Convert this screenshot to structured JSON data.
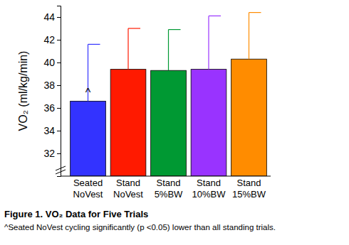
{
  "chart_data": {
    "type": "bar",
    "title": "Figure 1.  VO₂ Data for Five Trials",
    "caption": "^Seated NoVest cycling significantly (p <0.05) lower than all standing trials.",
    "y_label": "VO₂ (ml/kg/min)",
    "categories": [
      "Seated NoVest",
      "Stand NoVest",
      "Stand 5%BW",
      "Stand 10%BW",
      "Stand 15%BW"
    ],
    "values": [
      36.6,
      39.4,
      39.3,
      39.4,
      40.3
    ],
    "errors": [
      5.0,
      3.6,
      3.6,
      4.7,
      4.1
    ],
    "colors": [
      "#3333ff",
      "#ff1a00",
      "#009933",
      "#9933ff",
      "#ff8c00"
    ],
    "annotations": [
      {
        "text": "^",
        "category": "Seated NoVest"
      }
    ],
    "ylim": [
      30,
      45
    ],
    "yticks": [
      32,
      34,
      36,
      38,
      40,
      42,
      44
    ],
    "grid": false
  }
}
